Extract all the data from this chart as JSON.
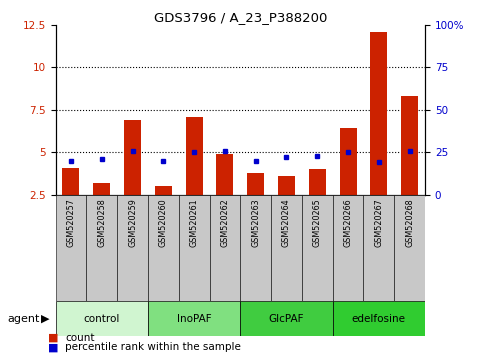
{
  "title": "GDS3796 / A_23_P388200",
  "samples": [
    "GSM520257",
    "GSM520258",
    "GSM520259",
    "GSM520260",
    "GSM520261",
    "GSM520262",
    "GSM520263",
    "GSM520264",
    "GSM520265",
    "GSM520266",
    "GSM520267",
    "GSM520268"
  ],
  "red_values": [
    4.1,
    3.2,
    6.9,
    3.0,
    7.1,
    4.9,
    3.8,
    3.6,
    4.0,
    6.4,
    12.1,
    8.3
  ],
  "blue_values": [
    20,
    21,
    26,
    20,
    25,
    26,
    20,
    22,
    23,
    25,
    19,
    26
  ],
  "ylim_left": [
    2.5,
    12.5
  ],
  "ylim_right": [
    0,
    100
  ],
  "yticks_left": [
    2.5,
    5.0,
    7.5,
    10.0,
    12.5
  ],
  "yticks_right": [
    0,
    25,
    50,
    75,
    100
  ],
  "ytick_labels_left": [
    "2.5",
    "5",
    "7.5",
    "10",
    "12.5"
  ],
  "ytick_labels_right": [
    "0",
    "25",
    "50",
    "75",
    "100%"
  ],
  "groups": [
    {
      "label": "control",
      "start": 0,
      "end": 2,
      "color": "#d0f5d0"
    },
    {
      "label": "InoPAF",
      "start": 3,
      "end": 5,
      "color": "#80e080"
    },
    {
      "label": "GlcPAF",
      "start": 6,
      "end": 8,
      "color": "#40cc40"
    },
    {
      "label": "edelfosine",
      "start": 9,
      "end": 11,
      "color": "#30cc30"
    }
  ],
  "bar_color": "#cc2200",
  "dot_color": "#0000cc",
  "bar_bottom": 2.5,
  "bg_color": "#ffffff",
  "sample_bg": "#c8c8c8",
  "tick_label_color_left": "#cc2200",
  "tick_label_color_right": "#0000cc",
  "legend_count_label": "count",
  "legend_pct_label": "percentile rank within the sample",
  "agent_label": "agent",
  "grid_lines": [
    5.0,
    7.5,
    10.0
  ]
}
